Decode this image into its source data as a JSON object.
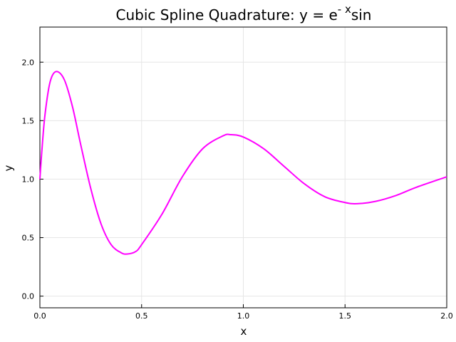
{
  "chart_data": {
    "type": "line",
    "title": "Cubic Spline Quadrature: y = e",
    "title_superscript": "- x",
    "title_suffix": "sin",
    "x_label": "x",
    "y_label": "y",
    "x": [
      0,
      0.01,
      0.025,
      0.05,
      0.08,
      0.12,
      0.16,
      0.2,
      0.25,
      0.3,
      0.35,
      0.4,
      0.43,
      0.47,
      0.5,
      0.6,
      0.7,
      0.8,
      0.9,
      0.94,
      1.0,
      1.1,
      1.2,
      1.3,
      1.4,
      1.5,
      1.56,
      1.65,
      1.75,
      1.85,
      2.0
    ],
    "series": [
      {
        "color": "#ff00ff",
        "values": [
          1.0,
          1.25,
          1.55,
          1.83,
          1.92,
          1.85,
          1.62,
          1.3,
          0.92,
          0.62,
          0.44,
          0.37,
          0.36,
          0.38,
          0.44,
          0.7,
          1.02,
          1.26,
          1.37,
          1.38,
          1.36,
          1.26,
          1.11,
          0.96,
          0.85,
          0.8,
          0.79,
          0.81,
          0.86,
          0.93,
          1.02
        ]
      }
    ],
    "xlim": [
      0,
      2
    ],
    "ylim": [
      -0.1,
      2.3
    ],
    "xticks": [
      {
        "value": 0,
        "label": "0.0"
      },
      {
        "value": 0.5,
        "label": "0.5"
      },
      {
        "value": 1,
        "label": "1.0"
      },
      {
        "value": 1.5,
        "label": "1.5"
      },
      {
        "value": 2,
        "label": "2.0"
      }
    ],
    "yticks": [
      {
        "value": 0,
        "label": "0.0"
      },
      {
        "value": 0.5,
        "label": "0.5"
      },
      {
        "value": 1,
        "label": "1.0"
      },
      {
        "value": 1.5,
        "label": "1.5"
      },
      {
        "value": 2,
        "label": "2.0"
      }
    ],
    "grid": true
  }
}
